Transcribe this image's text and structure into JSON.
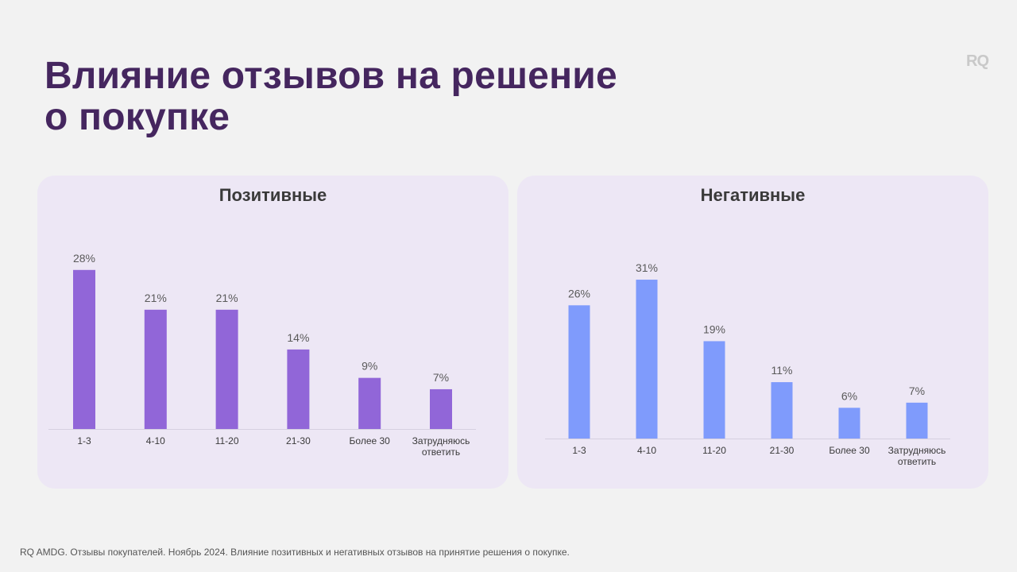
{
  "title_line1": "Влияние отзывов на решение",
  "title_line2": "о покупке",
  "logo": "RQ",
  "footer": "RQ AMDG. Отзывы покупателей. Ноябрь 2024. Влияние позитивных и негативных отзывов на принятие решения о покупке.",
  "chart_data": [
    {
      "type": "bar",
      "title": "Позитивные",
      "categories": [
        "1-3",
        "4-10",
        "11-20",
        "21-30",
        "Более 30",
        "Затрудняюсь ответить"
      ],
      "values": [
        28,
        21,
        21,
        14,
        9,
        7
      ],
      "labels": [
        "28%",
        "21%",
        "21%",
        "14%",
        "9%",
        "7%"
      ],
      "color": "#9166d8",
      "ylim": [
        0,
        35
      ]
    },
    {
      "type": "bar",
      "title": "Негативные",
      "categories": [
        "1-3",
        "4-10",
        "11-20",
        "21-30",
        "Более 30",
        "Затрудняюсь ответить"
      ],
      "values": [
        26,
        31,
        19,
        11,
        6,
        7
      ],
      "labels": [
        "26%",
        "31%",
        "19%",
        "11%",
        "6%",
        "7%"
      ],
      "color": "#7f9bfc",
      "ylim": [
        0,
        35
      ]
    }
  ]
}
